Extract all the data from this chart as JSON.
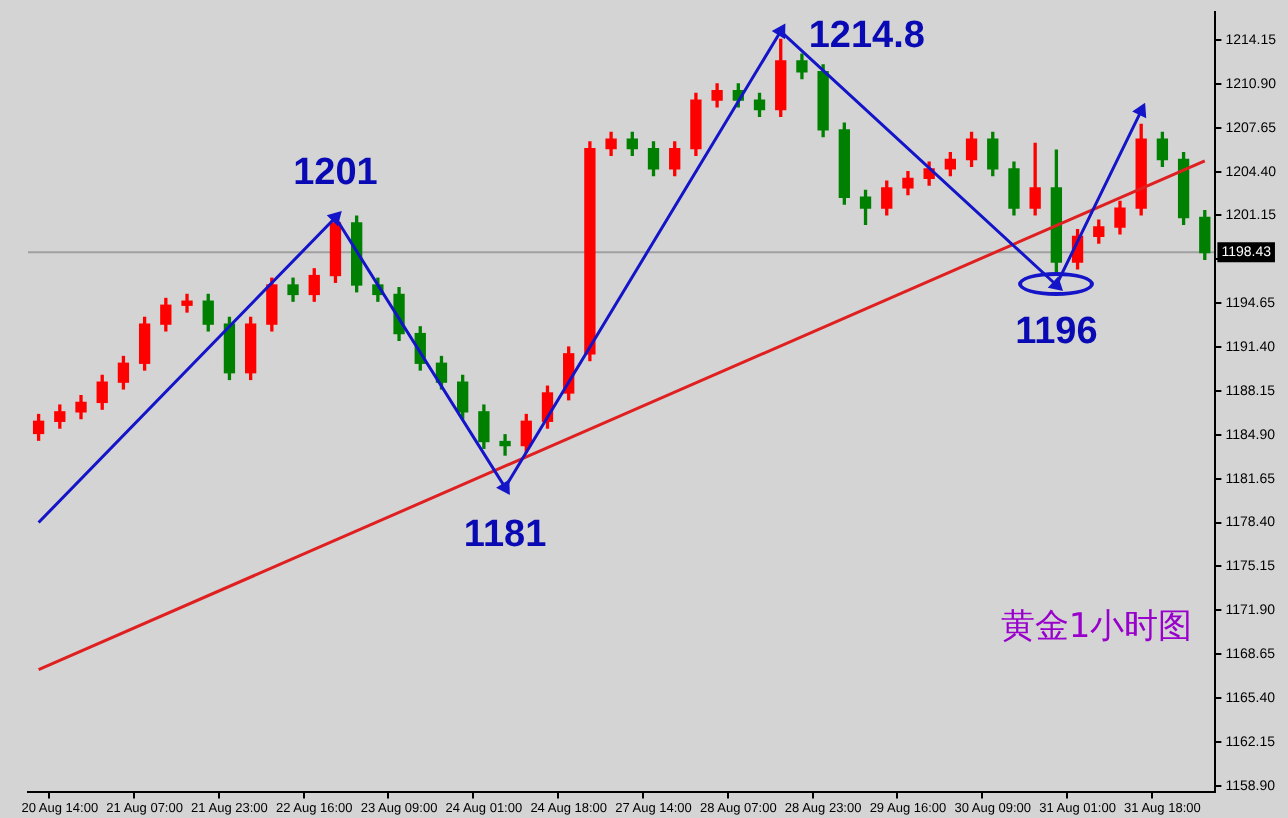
{
  "chart_data": {
    "type": "candlestick",
    "categories": [
      null,
      "20 Aug 14:00",
      null,
      null,
      null,
      "21 Aug 07:00",
      null,
      null,
      null,
      "21 Aug 23:00",
      null,
      null,
      null,
      "22 Aug 16:00",
      null,
      null,
      null,
      "23 Aug 09:00",
      null,
      null,
      null,
      "24 Aug 01:00",
      null,
      null,
      null,
      "24 Aug 18:00",
      null,
      null,
      null,
      "27 Aug 14:00",
      null,
      null,
      null,
      "28 Aug 07:00",
      null,
      null,
      null,
      "28 Aug 23:00",
      null,
      null,
      null,
      "29 Aug 16:00",
      null,
      null,
      null,
      "30 Aug 09:00",
      null,
      null,
      null,
      "31 Aug 01:00",
      null,
      null,
      null,
      "31 Aug 18:00",
      null,
      null
    ],
    "ohlc": [
      [
        1185.0,
        1186.4,
        1184.5,
        1185.9
      ],
      [
        1185.9,
        1187.1,
        1185.4,
        1186.6
      ],
      [
        1186.6,
        1187.8,
        1186.1,
        1187.3
      ],
      [
        1187.3,
        1189.3,
        1186.8,
        1188.8
      ],
      [
        1188.8,
        1190.7,
        1188.3,
        1190.2
      ],
      [
        1190.2,
        1193.6,
        1189.7,
        1193.1
      ],
      [
        1193.1,
        1195.0,
        1192.6,
        1194.5
      ],
      [
        1194.5,
        1195.3,
        1194.0,
        1194.8
      ],
      [
        1194.8,
        1195.3,
        1192.6,
        1193.1
      ],
      [
        1193.1,
        1193.6,
        1189.0,
        1189.5
      ],
      [
        1189.5,
        1193.6,
        1189.0,
        1193.1
      ],
      [
        1193.1,
        1196.5,
        1192.6,
        1196.0
      ],
      [
        1196.0,
        1196.5,
        1194.8,
        1195.3
      ],
      [
        1195.3,
        1197.2,
        1194.8,
        1196.7
      ],
      [
        1196.7,
        1201.0,
        1196.2,
        1200.6
      ],
      [
        1200.6,
        1201.1,
        1195.5,
        1196.0
      ],
      [
        1196.0,
        1196.5,
        1194.8,
        1195.3
      ],
      [
        1195.3,
        1195.8,
        1191.9,
        1192.4
      ],
      [
        1192.4,
        1192.9,
        1189.7,
        1190.2
      ],
      [
        1190.2,
        1190.7,
        1188.3,
        1188.8
      ],
      [
        1188.8,
        1189.3,
        1186.1,
        1186.6
      ],
      [
        1186.6,
        1187.1,
        1183.9,
        1184.4
      ],
      [
        1184.4,
        1184.9,
        1183.4,
        1184.1
      ],
      [
        1184.1,
        1186.4,
        1183.6,
        1185.9
      ],
      [
        1185.9,
        1188.5,
        1185.4,
        1188.0
      ],
      [
        1188.0,
        1191.4,
        1187.5,
        1190.9
      ],
      [
        1190.9,
        1206.6,
        1190.4,
        1206.1
      ],
      [
        1206.1,
        1207.3,
        1205.6,
        1206.8
      ],
      [
        1206.8,
        1207.3,
        1205.6,
        1206.1
      ],
      [
        1206.1,
        1206.6,
        1204.1,
        1204.6
      ],
      [
        1204.6,
        1206.6,
        1204.1,
        1206.1
      ],
      [
        1206.1,
        1210.2,
        1205.6,
        1209.7
      ],
      [
        1209.7,
        1210.9,
        1209.2,
        1210.4
      ],
      [
        1210.4,
        1210.9,
        1209.2,
        1209.7
      ],
      [
        1209.7,
        1210.2,
        1208.5,
        1209.0
      ],
      [
        1209.0,
        1214.2,
        1208.5,
        1212.6
      ],
      [
        1212.6,
        1213.1,
        1211.3,
        1211.8
      ],
      [
        1211.8,
        1212.3,
        1207.0,
        1207.5
      ],
      [
        1207.5,
        1208.0,
        1202.0,
        1202.5
      ],
      [
        1202.5,
        1203.0,
        1200.5,
        1201.7
      ],
      [
        1201.7,
        1203.7,
        1201.2,
        1203.2
      ],
      [
        1203.2,
        1204.4,
        1202.7,
        1203.9
      ],
      [
        1203.9,
        1205.1,
        1203.4,
        1204.6
      ],
      [
        1204.6,
        1205.8,
        1204.1,
        1205.3
      ],
      [
        1205.3,
        1207.3,
        1204.8,
        1206.8
      ],
      [
        1206.8,
        1207.3,
        1204.1,
        1204.6
      ],
      [
        1204.6,
        1205.1,
        1201.2,
        1201.7
      ],
      [
        1201.7,
        1206.5,
        1201.2,
        1203.2
      ],
      [
        1203.2,
        1206.0,
        1197.0,
        1197.7
      ],
      [
        1197.7,
        1200.1,
        1197.2,
        1199.6
      ],
      [
        1199.6,
        1200.8,
        1199.1,
        1200.3
      ],
      [
        1200.3,
        1202.2,
        1199.8,
        1201.7
      ],
      [
        1201.7,
        1207.9,
        1201.2,
        1206.8
      ],
      [
        1206.8,
        1207.3,
        1204.8,
        1205.3
      ],
      [
        1205.3,
        1205.8,
        1200.5,
        1201.0
      ],
      [
        1201.0,
        1201.5,
        1197.9,
        1198.4
      ]
    ],
    "colors": [
      "#ff0000",
      "#ff0000",
      "#ff0000",
      "#ff0000",
      "#ff0000",
      "#ff0000",
      "#ff0000",
      "#ff0000",
      "#008000",
      "#008000",
      "#ff0000",
      "#ff0000",
      "#008000",
      "#ff0000",
      "#ff0000",
      "#008000",
      "#008000",
      "#008000",
      "#008000",
      "#008000",
      "#008000",
      "#008000",
      "#008000",
      "#ff0000",
      "#ff0000",
      "#ff0000",
      "#ff0000",
      "#ff0000",
      "#008000",
      "#008000",
      "#ff0000",
      "#ff0000",
      "#ff0000",
      "#008000",
      "#008000",
      "#ff0000",
      "#008000",
      "#008000",
      "#008000",
      "#008000",
      "#ff0000",
      "#ff0000",
      "#ff0000",
      "#ff0000",
      "#ff0000",
      "#008000",
      "#008000",
      "#ff0000",
      "#008000",
      "#ff0000",
      "#ff0000",
      "#ff0000",
      "#ff0000",
      "#008000",
      "#008000",
      "#008000"
    ],
    "series": [
      {
        "type": "line",
        "color": "#1414c8",
        "marker": "triangle",
        "values": [
          1178.4,
          null,
          null,
          null,
          null,
          null,
          null,
          null,
          null,
          null,
          null,
          null,
          null,
          null,
          1201,
          null,
          null,
          null,
          null,
          null,
          null,
          null,
          1181,
          null,
          null,
          null,
          null,
          null,
          null,
          null,
          null,
          null,
          null,
          null,
          null,
          1214.8,
          null,
          null,
          null,
          null,
          null,
          null,
          null,
          null,
          null,
          null,
          null,
          null,
          1196,
          null,
          null,
          null,
          1208.9,
          null,
          null,
          null
        ]
      },
      {
        "type": "line",
        "color": "#e02020",
        "values": [
          1167.5,
          null,
          null,
          null,
          null,
          null,
          null,
          null,
          null,
          null,
          null,
          null,
          null,
          null,
          null,
          null,
          null,
          null,
          null,
          null,
          null,
          null,
          null,
          null,
          null,
          null,
          null,
          null,
          null,
          null,
          null,
          null,
          null,
          null,
          null,
          null,
          null,
          null,
          null,
          null,
          null,
          null,
          null,
          null,
          null,
          null,
          null,
          null,
          null,
          null,
          null,
          null,
          null,
          null,
          null,
          1205.2
        ]
      }
    ],
    "ylim": [
      1158.4,
      1216.2
    ],
    "yticks": [
      {
        "value": 1158.9,
        "label": "1158.90"
      },
      {
        "value": 1162.15,
        "label": "1162.15"
      },
      {
        "value": 1165.4,
        "label": "1165.40"
      },
      {
        "value": 1168.65,
        "label": "1168.65"
      },
      {
        "value": 1171.9,
        "label": "1171.90"
      },
      {
        "value": 1175.15,
        "label": "1175.15"
      },
      {
        "value": 1178.4,
        "label": "1178.40"
      },
      {
        "value": 1181.65,
        "label": "1181.65"
      },
      {
        "value": 1184.9,
        "label": "1184.90"
      },
      {
        "value": 1188.15,
        "label": "1188.15"
      },
      {
        "value": 1191.4,
        "label": "1191.40"
      },
      {
        "value": 1194.65,
        "label": "1194.65"
      },
      {
        "value": 1197.9,
        "label": null
      },
      {
        "value": 1201.15,
        "label": "1201.15"
      },
      {
        "value": 1204.4,
        "label": "1204.40"
      },
      {
        "value": 1207.65,
        "label": "1207.65"
      },
      {
        "value": 1210.9,
        "label": "1210.90"
      },
      {
        "value": 1214.15,
        "label": "1214.15"
      }
    ],
    "ref_lines": [
      {
        "axis": "y",
        "value": 1198.43,
        "label": "1198.43",
        "color": "#a0a0a0"
      }
    ],
    "annotations": [
      {
        "text": "1201",
        "y": 1201
      },
      {
        "text": "1181",
        "y": 1181
      },
      "1214.8",
      {
        "text": "1196",
        "y": 1196
      },
      "黄金1小时图"
    ],
    "grid": false,
    "legend": false
  }
}
